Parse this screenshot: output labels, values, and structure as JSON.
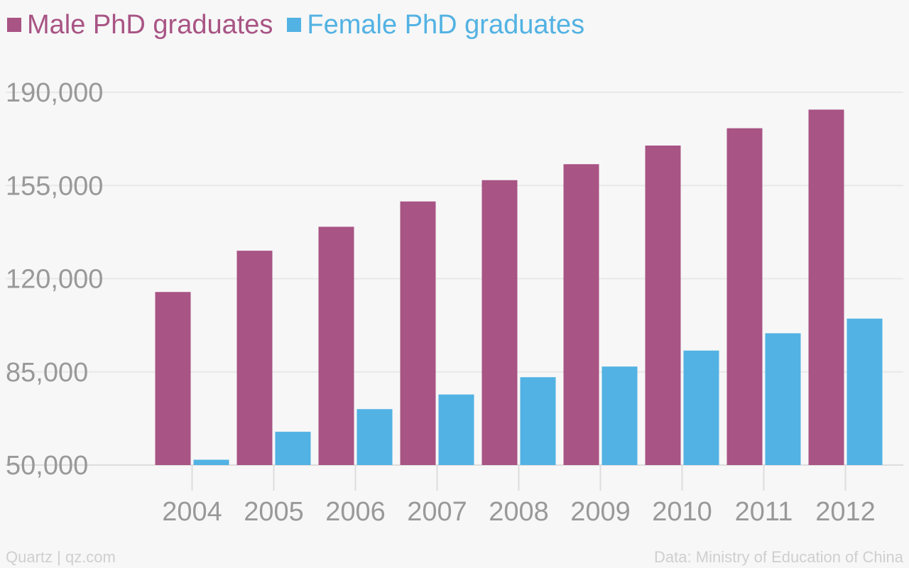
{
  "chart_data": {
    "type": "bar",
    "categories": [
      "2004",
      "2005",
      "2006",
      "2007",
      "2008",
      "2009",
      "2010",
      "2011",
      "2012"
    ],
    "series": [
      {
        "name": "Male PhD graduates",
        "color": "#a85484",
        "values": [
          115000,
          130500,
          139500,
          149000,
          157000,
          163000,
          170000,
          176500,
          183500
        ]
      },
      {
        "name": "Female PhD graduates",
        "color": "#52b2e3",
        "values": [
          52000,
          62500,
          71000,
          76500,
          83000,
          87000,
          93000,
          99500,
          105000
        ]
      }
    ],
    "yticks": [
      50000,
      85000,
      120000,
      155000,
      190000
    ],
    "ytick_labels": [
      "50,000",
      "85,000",
      "120,000",
      "155,000",
      "190,000"
    ],
    "ylim": [
      50000,
      190000
    ],
    "grid": true,
    "legend_position": "top-left"
  },
  "footer": {
    "source_left": "Quartz | qz.com",
    "source_right": "Data: Ministry of Education of China"
  }
}
